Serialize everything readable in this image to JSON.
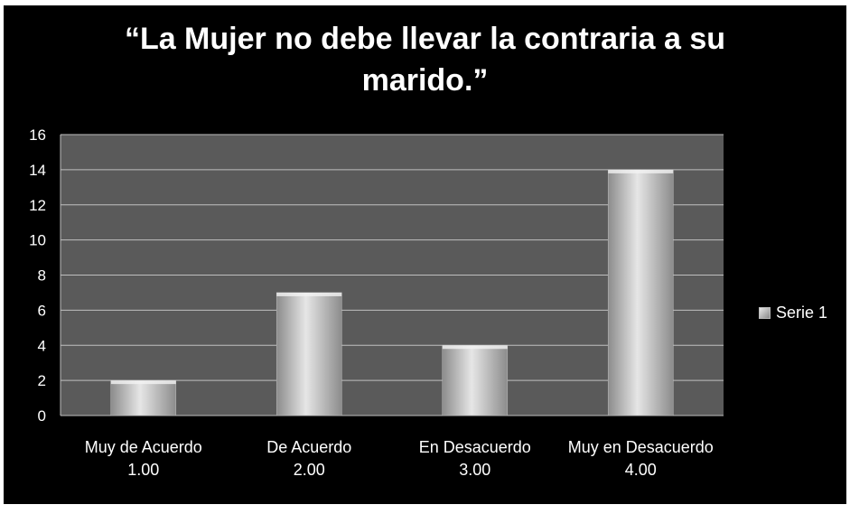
{
  "chart_data": {
    "type": "bar",
    "title_lines": [
      "“La Mujer no debe llevar la contraria a su",
      "marido.”"
    ],
    "categories": [
      [
        "Muy de Acuerdo",
        "1.00"
      ],
      [
        "De Acuerdo",
        "2.00"
      ],
      [
        "En Desacuerdo",
        "3.00"
      ],
      [
        "Muy en Desacuerdo",
        "4.00"
      ]
    ],
    "series": [
      {
        "name": "Serie 1",
        "values": [
          2,
          7,
          4,
          14
        ]
      }
    ],
    "ylim": [
      0,
      16
    ],
    "yticks": [
      0,
      2,
      4,
      6,
      8,
      10,
      12,
      14,
      16
    ],
    "xlabel": "",
    "ylabel": "",
    "grid": true,
    "legend_position": "right",
    "colors": {
      "background": "#000000",
      "plot_area": "#5a5a5a",
      "gridline": "#bfbfbf",
      "bar_light": "#e6e6e6",
      "bar_dark": "#8c8c8c",
      "text": "#ffffff"
    }
  }
}
